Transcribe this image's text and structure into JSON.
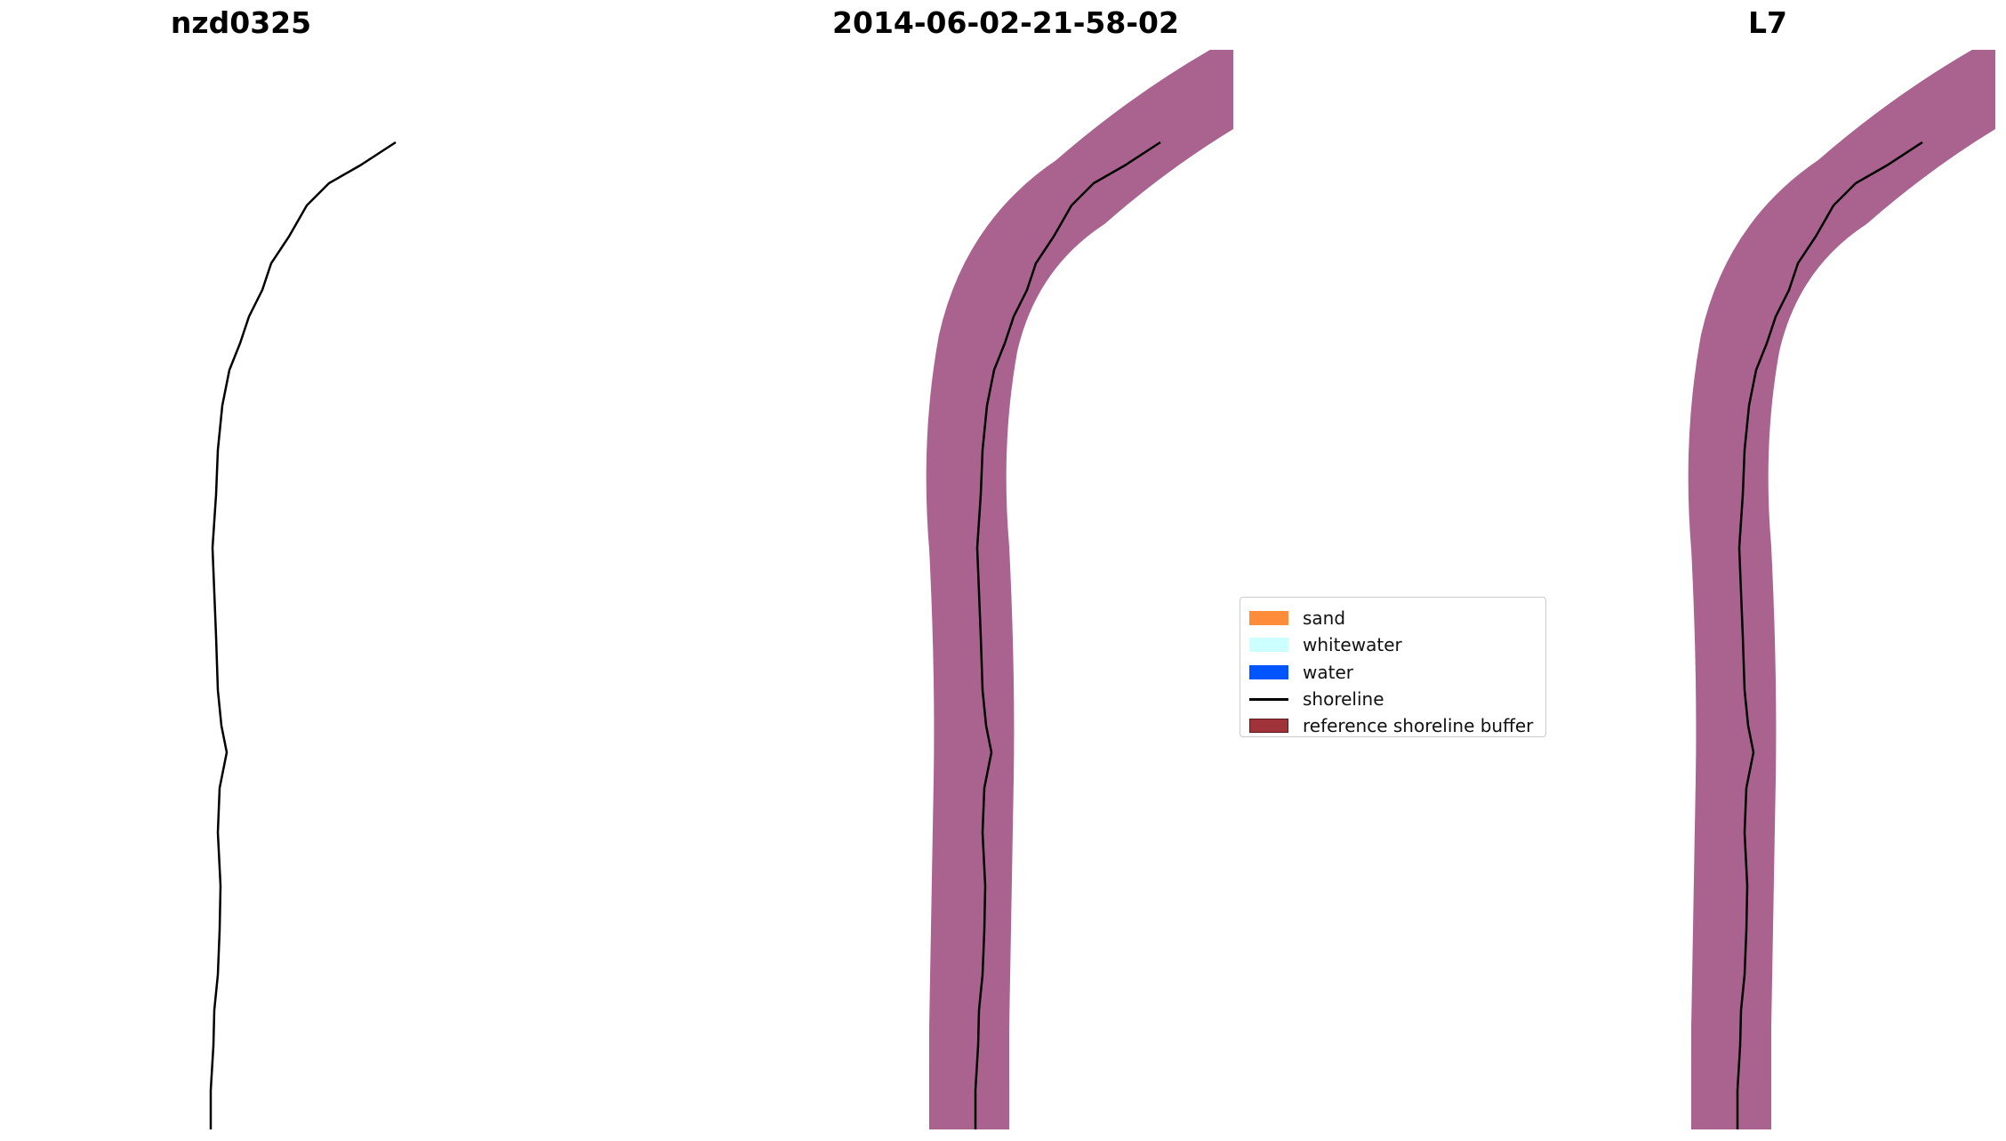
{
  "panels": [
    {
      "title": "nzd0325",
      "kind": "rgb"
    },
    {
      "title": "2014-06-02-21-58-02",
      "kind": "classified"
    },
    {
      "title": "L7",
      "kind": "index"
    }
  ],
  "legend": {
    "items": [
      {
        "label": "sand",
        "color": "#ff8c3a",
        "type": "patch"
      },
      {
        "label": "whitewater",
        "color": "#ccffff",
        "type": "patch"
      },
      {
        "label": "water",
        "color": "#0055ff",
        "type": "patch"
      },
      {
        "label": "shoreline",
        "color": "#000000",
        "type": "line"
      },
      {
        "label": "reference shoreline buffer",
        "color": "#a0323a",
        "type": "patch"
      }
    ]
  },
  "colors": {
    "ocean": "#3f7fa6",
    "land": "#7b8a97",
    "water_class": "#0055ff",
    "buffer": "#8e2f6a",
    "index_land": "#ff3030",
    "index_water": "#dde0ff"
  }
}
